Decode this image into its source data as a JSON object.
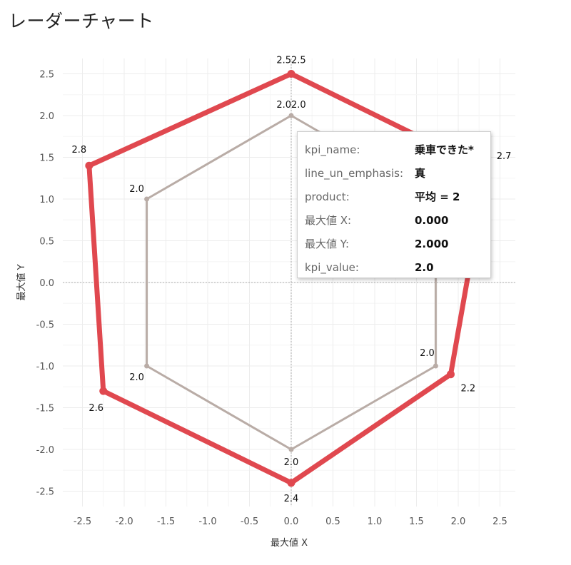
{
  "page_title": "レーダーチャート",
  "chart_data": {
    "type": "line",
    "title": "レーダーチャート",
    "xlabel": "最大値 X",
    "ylabel": "最大値 Y",
    "xlim": [
      -2.65,
      2.65
    ],
    "ylim": [
      -2.65,
      2.65
    ],
    "x_ticks": [
      "-2.5",
      "-2.0",
      "-1.5",
      "-1.0",
      "-0.5",
      "0.0",
      "0.5",
      "1.0",
      "1.5",
      "2.0",
      "2.5"
    ],
    "y_ticks": [
      "2.5",
      "2.0",
      "1.5",
      "1.0",
      "0.5",
      "0.0",
      "-0.5",
      "-1.0",
      "-1.5",
      "-2.0",
      "-2.5"
    ],
    "grid": true,
    "series": [
      {
        "color": "#e0484f",
        "closed": true,
        "points": [
          {
            "x": 0.0,
            "y": 2.5,
            "label": "2.52.5"
          },
          {
            "x": 2.34,
            "y": 1.35,
            "label": "2.7"
          },
          {
            "x": 1.91,
            "y": -1.1,
            "label": "2.2"
          },
          {
            "x": 0.0,
            "y": -2.4,
            "label": "2.4"
          },
          {
            "x": -2.25,
            "y": -1.3,
            "label": "2.6"
          },
          {
            "x": -2.42,
            "y": 1.4,
            "label": "2.8"
          }
        ]
      },
      {
        "color": "#b9aca6",
        "closed": true,
        "points": [
          {
            "x": 0.0,
            "y": 2.0,
            "label": "2.02.0"
          },
          {
            "x": 1.73,
            "y": 1.0,
            "label": ""
          },
          {
            "x": 1.73,
            "y": -1.0,
            "label": "2.0"
          },
          {
            "x": 0.0,
            "y": -2.0,
            "label": "2.0"
          },
          {
            "x": -1.73,
            "y": -1.0,
            "label": "2.0"
          },
          {
            "x": -1.73,
            "y": 1.0,
            "label": "2.0"
          }
        ]
      }
    ]
  },
  "tooltip": {
    "rows": [
      {
        "key": "kpi_name:",
        "value": "乗車できた*"
      },
      {
        "key": "line_un_emphasis:",
        "value": "真"
      },
      {
        "key": "product:",
        "value": "平均 = 2"
      },
      {
        "key": "最大値 X:",
        "value": "0.000"
      },
      {
        "key": "最大値 Y:",
        "value": "2.000"
      },
      {
        "key": "kpi_value:",
        "value": "2.0"
      }
    ]
  }
}
